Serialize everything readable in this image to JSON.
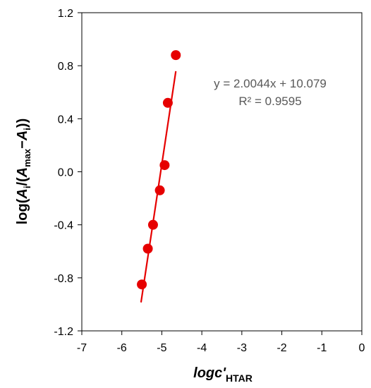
{
  "chart_data": {
    "type": "scatter",
    "title": "",
    "xlabel": {
      "main": "logc'",
      "sub": "HTAR"
    },
    "ylabel": {
      "p1": "log(",
      "a1": "A",
      "s1": "i",
      "p2": "/(",
      "a2": "A",
      "s2": "max",
      "p3": "−",
      "a3": "A",
      "s3": "i",
      "p4": "))"
    },
    "xlim": [
      -7,
      0
    ],
    "ylim": [
      -1.2,
      1.2
    ],
    "xticks": [
      -7,
      -6,
      -5,
      -4,
      -3,
      -2,
      -1,
      0
    ],
    "yticks": [
      -1.2,
      -0.8,
      -0.4,
      0.0,
      0.4,
      0.8,
      1.2
    ],
    "x_tick_labels": [
      "-7",
      "-6",
      "-5",
      "-4",
      "-3",
      "-2",
      "-1",
      "0"
    ],
    "y_tick_labels": [
      "-1.2",
      "-0.8",
      "-0.4",
      "0.0",
      "0.4",
      "0.8",
      "1.2"
    ],
    "series": [
      {
        "marker_color": "#e60000",
        "x": [
          -5.5,
          -5.35,
          -5.22,
          -5.05,
          -4.93,
          -4.85,
          -4.65
        ],
        "y": [
          -0.85,
          -0.58,
          -0.4,
          -0.14,
          0.05,
          0.52,
          0.88
        ]
      }
    ],
    "trendline": {
      "color": "#e60000",
      "slope": 2.0044,
      "intercept": 10.079,
      "x_range": [
        -5.5,
        -4.65
      ],
      "equation": "y = 2.0044x + 10.079",
      "r2_text": "R² = 0.9595"
    },
    "grid": false,
    "legend": "none"
  }
}
